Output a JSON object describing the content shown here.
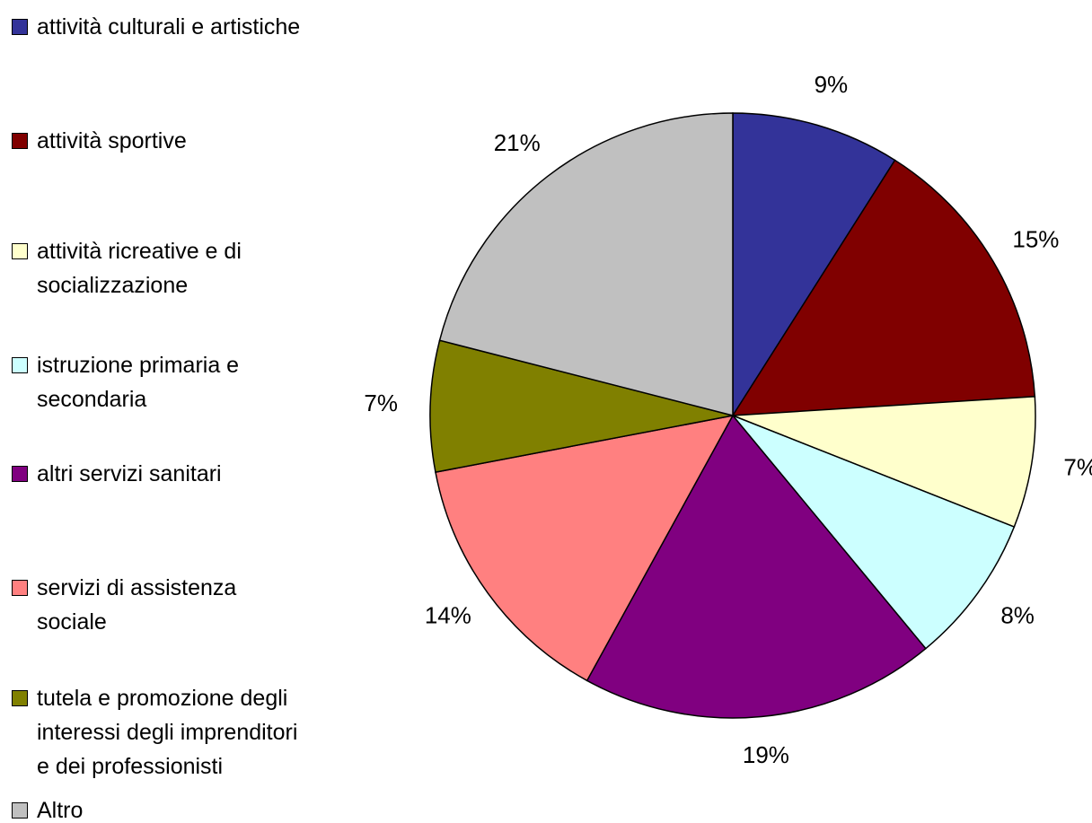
{
  "chart_data": {
    "type": "pie",
    "categories": [
      "attività culturali e artistiche",
      "attività sportive",
      "attività ricreative e di socializzazione",
      "istruzione primaria e secondaria",
      "altri servizi sanitari",
      "servizi di assistenza sociale",
      "tutela e promozione degli interessi degli imprenditori e dei professionisti",
      "Altro"
    ],
    "values": [
      9,
      15,
      7,
      8,
      19,
      14,
      7,
      21
    ],
    "value_labels": [
      "9%",
      "15%",
      "7%",
      "8%",
      "19%",
      "14%",
      "7%",
      "21%"
    ],
    "colors": [
      "#333399",
      "#800000",
      "#ffffcc",
      "#ccffff",
      "#800080",
      "#ff8080",
      "#808000",
      "#c0c0c0"
    ],
    "legend": "left"
  }
}
